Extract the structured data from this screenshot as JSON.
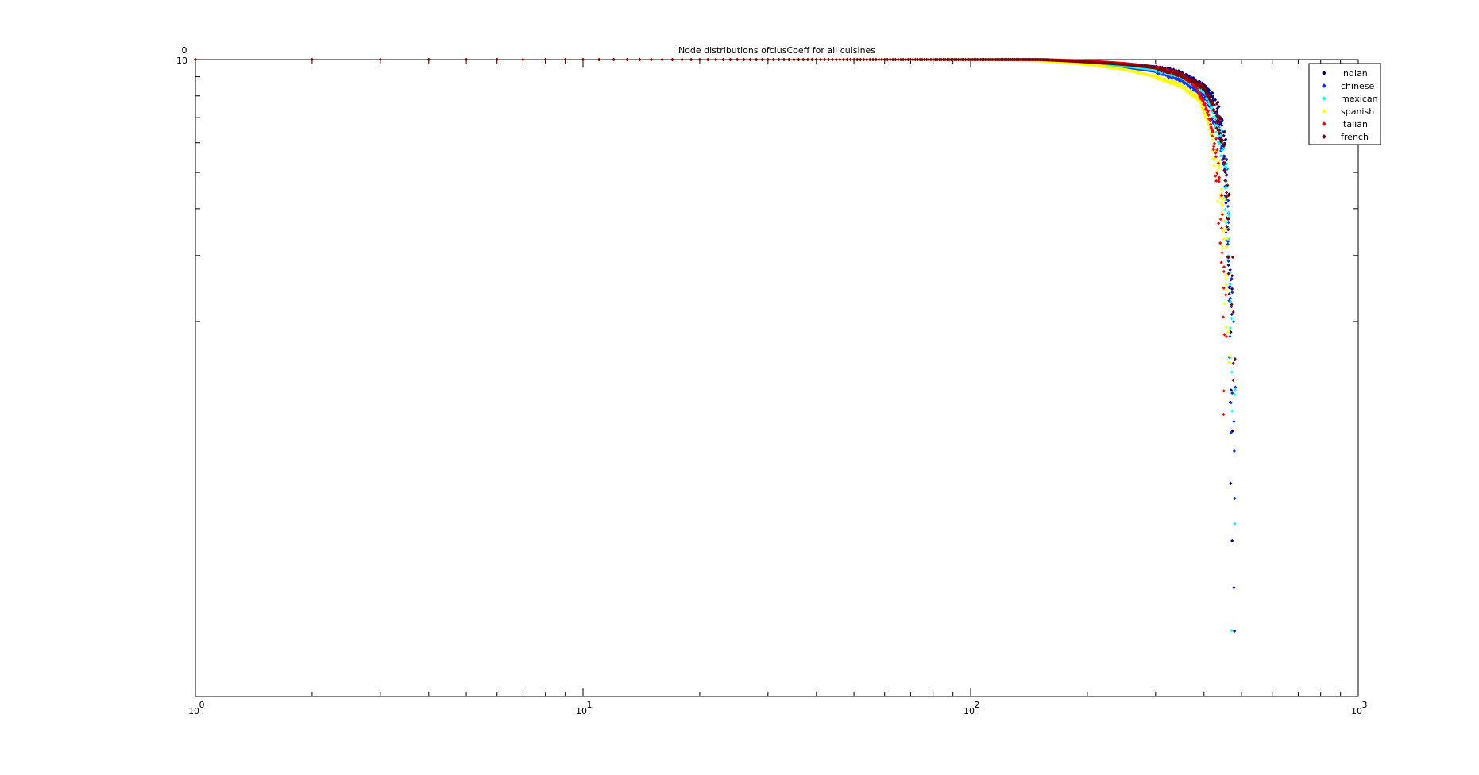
{
  "chart_data": {
    "type": "scatter",
    "title": "Node distributions ofclusCoeff for all cuisines",
    "xlabel": "",
    "ylabel": "",
    "xscale": "log",
    "yscale": "log",
    "xlim": [
      1,
      1000
    ],
    "x_ticks": [
      {
        "base": "10",
        "exp": "0"
      },
      {
        "base": "10",
        "exp": "1"
      },
      {
        "base": "10",
        "exp": "2"
      },
      {
        "base": "10",
        "exp": "3"
      }
    ],
    "y_ticks": [
      {
        "base": "10",
        "exp": "0"
      }
    ],
    "grid": false,
    "legend_position": "top-right",
    "marker": "dot",
    "series": [
      {
        "name": "indian",
        "color": "#00008f",
        "curve": [
          [
            1,
            1
          ],
          [
            150,
            1
          ],
          [
            200,
            0.99
          ],
          [
            250,
            0.975
          ],
          [
            300,
            0.955
          ],
          [
            350,
            0.92
          ],
          [
            400,
            0.85
          ],
          [
            430,
            0.78
          ],
          [
            450,
            0.6
          ],
          [
            460,
            0.4
          ],
          [
            470,
            0.2
          ],
          [
            478,
            0.02
          ]
        ],
        "spread": 0.02
      },
      {
        "name": "chinese",
        "color": "#0033ff",
        "curve": [
          [
            1,
            1
          ],
          [
            140,
            1
          ],
          [
            200,
            0.98
          ],
          [
            250,
            0.955
          ],
          [
            300,
            0.93
          ],
          [
            350,
            0.88
          ],
          [
            400,
            0.8
          ],
          [
            430,
            0.7
          ],
          [
            450,
            0.55
          ],
          [
            460,
            0.4
          ],
          [
            470,
            0.2
          ],
          [
            480,
            0.1
          ]
        ],
        "spread": 0.02
      },
      {
        "name": "mexican",
        "color": "#00ffff",
        "curve": [
          [
            1,
            1
          ],
          [
            140,
            1
          ],
          [
            200,
            0.98
          ],
          [
            250,
            0.96
          ],
          [
            300,
            0.94
          ],
          [
            350,
            0.9
          ],
          [
            400,
            0.82
          ],
          [
            430,
            0.7
          ],
          [
            450,
            0.55
          ],
          [
            460,
            0.38
          ],
          [
            470,
            0.2
          ],
          [
            478,
            0.06
          ]
        ],
        "spread": 0.02
      },
      {
        "name": "spanish",
        "color": "#ffff00",
        "curve": [
          [
            1,
            1
          ],
          [
            130,
            1
          ],
          [
            170,
            0.985
          ],
          [
            200,
            0.97
          ],
          [
            250,
            0.94
          ],
          [
            300,
            0.9
          ],
          [
            350,
            0.85
          ],
          [
            390,
            0.78
          ],
          [
            420,
            0.62
          ],
          [
            440,
            0.45
          ],
          [
            455,
            0.3
          ],
          [
            465,
            0.15
          ]
        ],
        "spread": 0.02
      },
      {
        "name": "italian",
        "color": "#ff0000",
        "curve": [
          [
            1,
            1
          ],
          [
            150,
            1
          ],
          [
            200,
            0.99
          ],
          [
            250,
            0.975
          ],
          [
            300,
            0.95
          ],
          [
            350,
            0.91
          ],
          [
            380,
            0.85
          ],
          [
            410,
            0.72
          ],
          [
            430,
            0.55
          ],
          [
            440,
            0.4
          ],
          [
            450,
            0.25
          ],
          [
            455,
            0.15
          ]
        ],
        "spread": 0.02
      },
      {
        "name": "french",
        "color": "#800000",
        "curve": [
          [
            1,
            1
          ],
          [
            150,
            1
          ],
          [
            200,
            0.985
          ],
          [
            250,
            0.97
          ],
          [
            300,
            0.95
          ],
          [
            350,
            0.91
          ],
          [
            400,
            0.84
          ],
          [
            430,
            0.72
          ],
          [
            450,
            0.58
          ],
          [
            460,
            0.4
          ],
          [
            470,
            0.25
          ],
          [
            475,
            0.15
          ]
        ],
        "spread": 0.02
      }
    ]
  }
}
